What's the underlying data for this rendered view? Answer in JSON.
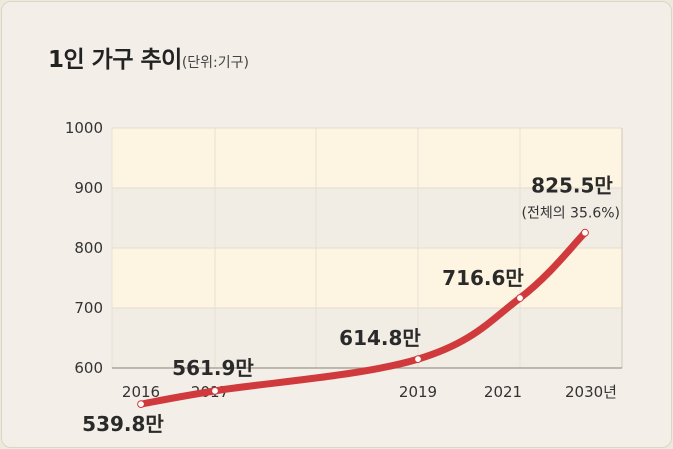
{
  "title": "1인 가구 추이",
  "unit_label": "(단위:기구)",
  "chart_data": {
    "type": "line",
    "x": [
      "2016",
      "2017",
      "2019",
      "2021",
      "2030년"
    ],
    "x_numeric": [
      2016,
      2017,
      2019,
      2021,
      2030
    ],
    "values": [
      539.8,
      561.9,
      614.8,
      716.6,
      825.5
    ],
    "data_labels": [
      "539.8만",
      "561.9만",
      "614.8만",
      "716.6만",
      "825.5만"
    ],
    "annotation": "(전체의 35.6%)",
    "yticks": [
      "600",
      "700",
      "800",
      "900",
      "1000"
    ],
    "ylim": [
      600,
      1000
    ],
    "grid": true,
    "colors": {
      "line": "#d03a3d",
      "band_light": "#fdf5e2",
      "band_dark": "#f1ece4"
    }
  }
}
